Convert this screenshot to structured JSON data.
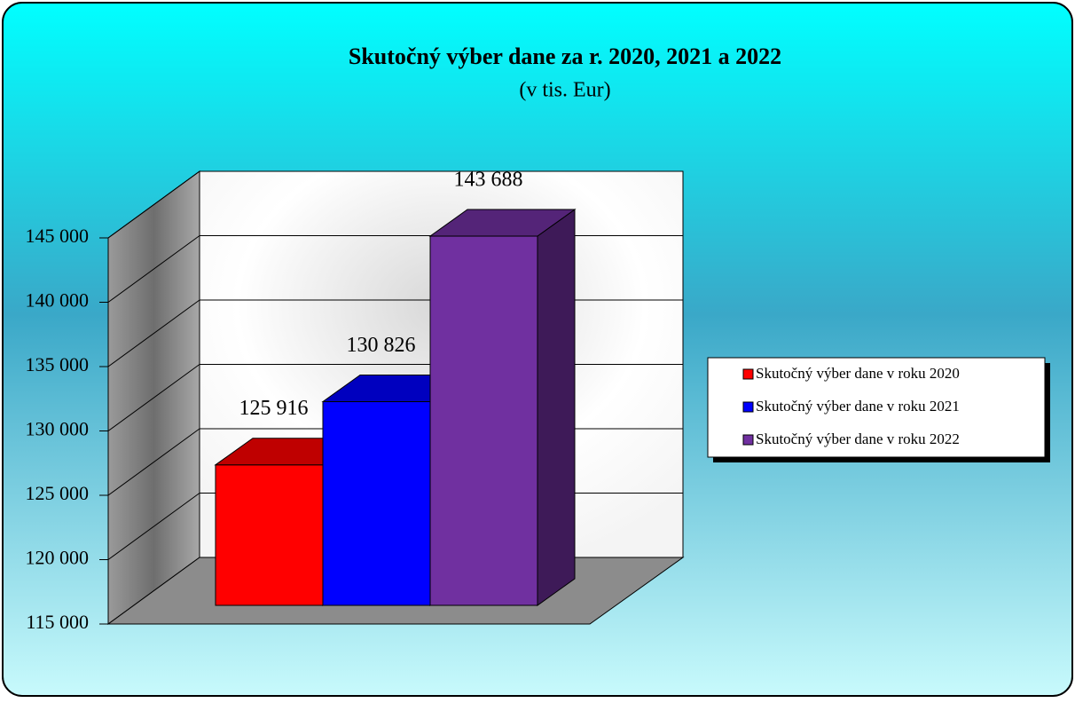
{
  "chart_data": {
    "type": "bar3d",
    "title": "Skutočný výber dane za r. 2020, 2021 a 2022",
    "subtitle": "(v tis. Eur)",
    "series": [
      {
        "name": "Skutočný výber dane v roku 2020",
        "color": "#ff0000",
        "values": [
          125916
        ],
        "value_labels": [
          "125 916"
        ]
      },
      {
        "name": "Skutočný výber dane v roku 2021",
        "color": "#0000ff",
        "values": [
          130826
        ],
        "value_labels": [
          "130 826"
        ]
      },
      {
        "name": "Skutočný výber dane v roku 2022",
        "color": "#7030a0",
        "values": [
          143688
        ],
        "value_labels": [
          "143 688"
        ]
      }
    ],
    "ylim": [
      115000,
      145000
    ],
    "yticks": [
      {
        "value": 115000,
        "label": "115 000"
      },
      {
        "value": 120000,
        "label": "120 000"
      },
      {
        "value": 125000,
        "label": "125 000"
      },
      {
        "value": 130000,
        "label": "130 000"
      },
      {
        "value": 135000,
        "label": "135 000"
      },
      {
        "value": 140000,
        "label": "140 000"
      },
      {
        "value": 145000,
        "label": "145 000"
      }
    ],
    "grid": true,
    "legend": "right"
  }
}
